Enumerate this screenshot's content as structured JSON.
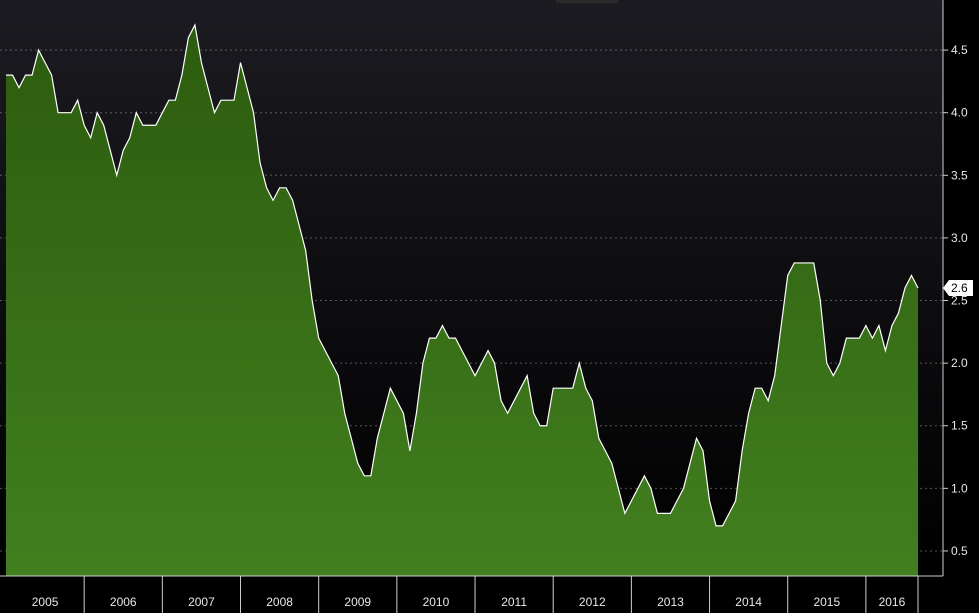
{
  "chart_data": {
    "type": "area",
    "x_start": "2005-01",
    "x_end": "2016-09",
    "year_labels": [
      "2005",
      "2006",
      "2007",
      "2008",
      "2009",
      "2010",
      "2011",
      "2012",
      "2013",
      "2014",
      "2015",
      "2016"
    ],
    "y_ticks": [
      "0.5",
      "1.0",
      "1.5",
      "2.0",
      "2.5",
      "3.0",
      "3.5",
      "4.0",
      "4.5"
    ],
    "ylim": [
      0.3,
      4.9
    ],
    "last_value_label": "2.6",
    "grid": true,
    "colors": {
      "background_top": "#1b1b21",
      "background_bottom": "#000000",
      "fill_top": "#2c5c0e",
      "fill_bottom": "#427f1f",
      "line": "#ffffff",
      "last_label_bg": "#ffffff"
    },
    "series": [
      {
        "values": [
          4.3,
          4.3,
          4.2,
          4.3,
          4.3,
          4.5,
          4.4,
          4.3,
          4.0,
          4.0,
          4.0,
          4.1,
          3.9,
          3.8,
          4.0,
          3.9,
          3.7,
          3.5,
          3.7,
          3.8,
          4.0,
          3.9,
          3.9,
          3.9,
          4.0,
          4.1,
          4.1,
          4.3,
          4.6,
          4.7,
          4.4,
          4.2,
          4.0,
          4.1,
          4.1,
          4.1,
          4.4,
          4.2,
          4.0,
          3.6,
          3.4,
          3.3,
          3.4,
          3.4,
          3.3,
          3.1,
          2.9,
          2.5,
          2.2,
          2.1,
          2.0,
          1.9,
          1.6,
          1.4,
          1.2,
          1.1,
          1.1,
          1.4,
          1.6,
          1.8,
          1.7,
          1.6,
          1.3,
          1.6,
          2.0,
          2.2,
          2.2,
          2.3,
          2.2,
          2.2,
          2.1,
          2.0,
          1.9,
          2.0,
          2.1,
          2.0,
          1.7,
          1.6,
          1.7,
          1.8,
          1.9,
          1.6,
          1.5,
          1.5,
          1.8,
          1.8,
          1.8,
          1.8,
          2.0,
          1.8,
          1.7,
          1.4,
          1.3,
          1.2,
          1.0,
          0.8,
          0.9,
          1.0,
          1.1,
          1.0,
          0.8,
          0.8,
          0.8,
          0.9,
          1.0,
          1.2,
          1.4,
          1.3,
          0.9,
          0.7,
          0.7,
          0.8,
          0.9,
          1.3,
          1.6,
          1.8,
          1.8,
          1.7,
          1.9,
          2.3,
          2.7,
          2.8,
          2.8,
          2.8,
          2.8,
          2.5,
          2.0,
          1.9,
          2.0,
          2.2,
          2.2,
          2.2,
          2.3,
          2.2,
          2.3,
          2.1,
          2.3,
          2.4,
          2.6,
          2.7,
          2.6
        ]
      }
    ]
  }
}
